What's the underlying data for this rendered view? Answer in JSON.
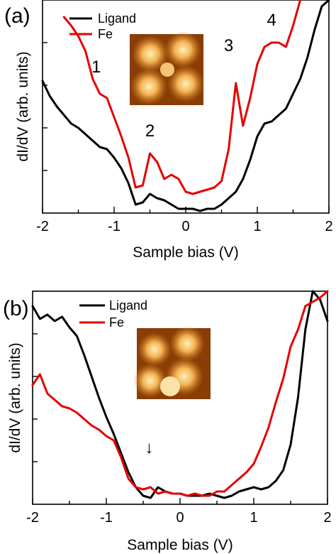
{
  "chart_data": [
    {
      "type": "line",
      "panel_label": "(a)",
      "xlabel": "Sample bias (V)",
      "ylabel": "dI/dV (arb. units)",
      "xlim": [
        -2,
        2
      ],
      "ylim": [
        0,
        10
      ],
      "x_ticks": [
        "-2",
        "-1",
        "0",
        "1",
        "2"
      ],
      "grid": false,
      "legend_position": "top-left",
      "series": [
        {
          "name": "Ligand",
          "color": "#000000",
          "x": [
            -2.0,
            -1.9,
            -1.8,
            -1.7,
            -1.6,
            -1.5,
            -1.4,
            -1.3,
            -1.2,
            -1.1,
            -1.0,
            -0.9,
            -0.8,
            -0.7,
            -0.6,
            -0.5,
            -0.4,
            -0.3,
            -0.2,
            -0.1,
            0.0,
            0.1,
            0.2,
            0.3,
            0.4,
            0.5,
            0.6,
            0.7,
            0.8,
            0.9,
            1.0,
            1.1,
            1.2,
            1.3,
            1.4,
            1.5,
            1.6,
            1.7,
            1.8,
            1.9,
            2.0
          ],
          "y": [
            6.2,
            5.5,
            5.0,
            4.6,
            4.2,
            4.0,
            3.7,
            3.4,
            3.1,
            3.0,
            2.6,
            2.1,
            1.4,
            0.4,
            0.5,
            0.9,
            0.7,
            0.6,
            0.4,
            0.2,
            0.2,
            0.2,
            0.1,
            0.2,
            0.2,
            0.4,
            0.7,
            1.0,
            1.6,
            2.5,
            3.6,
            4.2,
            4.3,
            4.6,
            4.9,
            5.6,
            6.3,
            7.3,
            8.6,
            9.7,
            10.0
          ]
        },
        {
          "name": "Fe",
          "color": "#e60000",
          "x": [
            -1.7,
            -1.6,
            -1.5,
            -1.4,
            -1.3,
            -1.2,
            -1.1,
            -1.0,
            -0.9,
            -0.8,
            -0.7,
            -0.6,
            -0.5,
            -0.4,
            -0.3,
            -0.2,
            -0.1,
            0.0,
            0.1,
            0.2,
            0.3,
            0.4,
            0.5,
            0.6,
            0.7,
            0.8,
            0.9,
            1.0,
            1.1,
            1.2,
            1.3,
            1.4,
            1.5,
            1.6
          ],
          "y": [
            9.2,
            8.8,
            8.3,
            7.6,
            6.3,
            5.6,
            5.4,
            4.5,
            3.6,
            2.6,
            1.2,
            1.3,
            2.8,
            2.4,
            1.6,
            1.8,
            1.6,
            1.0,
            0.9,
            1.0,
            1.1,
            1.2,
            1.5,
            3.0,
            6.1,
            4.1,
            5.4,
            7.0,
            7.8,
            8.0,
            8.0,
            7.8,
            8.8,
            10.0
          ]
        }
      ],
      "annotations": [
        {
          "text": "1",
          "x": -1.25,
          "y": 6.6
        },
        {
          "text": "2",
          "x": -0.5,
          "y": 3.6
        },
        {
          "text": "3",
          "x": 0.6,
          "y": 7.6
        },
        {
          "text": "4",
          "x": 1.2,
          "y": 8.8
        }
      ]
    },
    {
      "type": "line",
      "panel_label": "(b)",
      "xlabel": "Sample bias (V)",
      "ylabel": "dI/dV (arb. units)",
      "xlim": [
        -2,
        2
      ],
      "ylim": [
        0,
        10
      ],
      "x_ticks": [
        "-2",
        "-1",
        "0",
        "1",
        "2"
      ],
      "grid": false,
      "legend_position": "top-center",
      "series": [
        {
          "name": "Ligand",
          "color": "#000000",
          "x": [
            -2.0,
            -1.9,
            -1.8,
            -1.7,
            -1.6,
            -1.5,
            -1.4,
            -1.3,
            -1.2,
            -1.1,
            -1.0,
            -0.9,
            -0.8,
            -0.7,
            -0.6,
            -0.5,
            -0.4,
            -0.3,
            -0.2,
            -0.1,
            0.0,
            0.1,
            0.2,
            0.3,
            0.4,
            0.5,
            0.6,
            0.7,
            0.8,
            0.9,
            1.0,
            1.1,
            1.2,
            1.3,
            1.4,
            1.5,
            1.6,
            1.7,
            1.8,
            1.9,
            2.0
          ],
          "y": [
            9.3,
            8.7,
            8.9,
            8.6,
            8.8,
            8.3,
            7.9,
            7.0,
            6.0,
            5.0,
            4.1,
            3.3,
            2.4,
            1.5,
            0.8,
            0.4,
            0.3,
            0.8,
            0.6,
            0.5,
            0.5,
            0.4,
            0.4,
            0.4,
            0.5,
            0.4,
            0.3,
            0.4,
            0.6,
            0.7,
            0.8,
            0.7,
            0.8,
            1.1,
            1.6,
            2.8,
            5.0,
            8.2,
            10.0,
            9.6,
            8.6
          ]
        },
        {
          "name": "Fe",
          "color": "#e60000",
          "x": [
            -2.0,
            -1.9,
            -1.8,
            -1.7,
            -1.6,
            -1.5,
            -1.4,
            -1.3,
            -1.2,
            -1.1,
            -1.0,
            -0.9,
            -0.8,
            -0.7,
            -0.6,
            -0.5,
            -0.4,
            -0.3,
            -0.2,
            -0.1,
            0.0,
            0.1,
            0.2,
            0.3,
            0.4,
            0.5,
            0.6,
            0.7,
            0.8,
            0.9,
            1.0,
            1.1,
            1.2,
            1.3,
            1.4,
            1.5,
            1.6,
            1.7,
            1.8,
            1.9,
            2.0
          ],
          "y": [
            5.6,
            6.1,
            5.2,
            4.9,
            4.6,
            4.5,
            4.3,
            4.0,
            3.7,
            3.5,
            3.2,
            3.0,
            2.2,
            1.2,
            0.8,
            0.7,
            0.8,
            0.5,
            0.6,
            0.5,
            0.5,
            0.4,
            0.5,
            0.4,
            0.4,
            0.6,
            0.6,
            0.9,
            1.2,
            1.5,
            1.9,
            2.7,
            3.6,
            4.8,
            5.9,
            7.4,
            8.2,
            9.3,
            9.5,
            9.7,
            10.0
          ]
        }
      ],
      "annotations": [
        {
          "text": "↓",
          "x": -0.42,
          "y": 2.4
        }
      ]
    }
  ],
  "insets": [
    {
      "name": "Fe-inset-a",
      "type": "STM topograph",
      "colors": [
        "#7a3300",
        "#c46a12",
        "#f0a840",
        "#ffe6a0"
      ]
    },
    {
      "name": "Fe-inset-b",
      "type": "STM topograph",
      "colors": [
        "#7a3300",
        "#c46a12",
        "#f0a840",
        "#ffe6a0"
      ]
    }
  ]
}
